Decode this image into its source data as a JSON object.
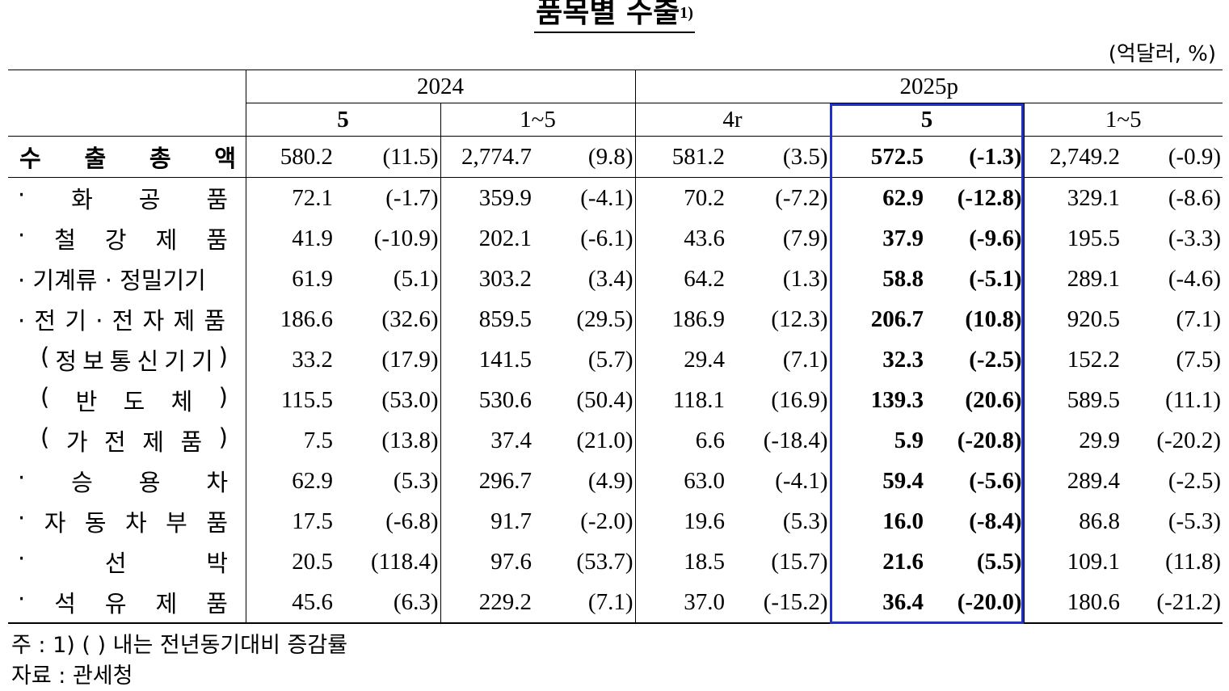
{
  "title": "품목별 수출",
  "title_note": "1)",
  "unit": "(억달러, %)",
  "header": {
    "year1": "2024",
    "year2": "2025p",
    "cols": [
      "5",
      "1~5",
      "4r",
      "5",
      "1~5"
    ]
  },
  "rows": [
    {
      "label": "수출총액",
      "v": [
        "580.2",
        "(11.5)",
        "2,774.7",
        "(9.8)",
        "581.2",
        "(3.5)",
        "572.5",
        "(-1.3)",
        "2,749.2",
        "(-0.9)"
      ]
    },
    {
      "label": "화공품",
      "v": [
        "72.1",
        "(-1.7)",
        "359.9",
        "(-4.1)",
        "70.2",
        "(-7.2)",
        "62.9",
        "(-12.8)",
        "329.1",
        "(-8.6)"
      ]
    },
    {
      "label": "철강제품",
      "v": [
        "41.9",
        "(-10.9)",
        "202.1",
        "(-6.1)",
        "43.6",
        "(7.9)",
        "37.9",
        "(-9.6)",
        "195.5",
        "(-3.3)"
      ]
    },
    {
      "label": "기계류 · 정밀기기",
      "v": [
        "61.9",
        "(5.1)",
        "303.2",
        "(3.4)",
        "64.2",
        "(1.3)",
        "58.8",
        "(-5.1)",
        "289.1",
        "(-4.6)"
      ]
    },
    {
      "label": "전기·전자제품",
      "v": [
        "186.6",
        "(32.6)",
        "859.5",
        "(29.5)",
        "186.9",
        "(12.3)",
        "206.7",
        "(10.8)",
        "920.5",
        "(7.1)"
      ]
    },
    {
      "label": "정보통신기기",
      "v": [
        "33.2",
        "(17.9)",
        "141.5",
        "(5.7)",
        "29.4",
        "(7.1)",
        "32.3",
        "(-2.5)",
        "152.2",
        "(7.5)"
      ]
    },
    {
      "label": "반도체",
      "v": [
        "115.5",
        "(53.0)",
        "530.6",
        "(50.4)",
        "118.1",
        "(16.9)",
        "139.3",
        "(20.6)",
        "589.5",
        "(11.1)"
      ]
    },
    {
      "label": "가전제품",
      "v": [
        "7.5",
        "(13.8)",
        "37.4",
        "(21.0)",
        "6.6",
        "(-18.4)",
        "5.9",
        "(-20.8)",
        "29.9",
        "(-20.2)"
      ]
    },
    {
      "label": "승용차",
      "v": [
        "62.9",
        "(5.3)",
        "296.7",
        "(4.9)",
        "63.0",
        "(-4.1)",
        "59.4",
        "(-5.6)",
        "289.4",
        "(-2.5)"
      ]
    },
    {
      "label": "자동차부품",
      "v": [
        "17.5",
        "(-6.8)",
        "91.7",
        "(-2.0)",
        "19.6",
        "(5.3)",
        "16.0",
        "(-8.4)",
        "86.8",
        "(-5.3)"
      ]
    },
    {
      "label": "선박",
      "v": [
        "20.5",
        "(118.4)",
        "97.6",
        "(53.7)",
        "18.5",
        "(15.7)",
        "21.6",
        "(5.5)",
        "109.1",
        "(11.8)"
      ]
    },
    {
      "label": "석유제품",
      "v": [
        "45.6",
        "(6.3)",
        "229.2",
        "(7.1)",
        "37.0",
        "(-15.2)",
        "36.4",
        "(-20.0)",
        "180.6",
        "(-21.2)"
      ]
    }
  ],
  "note1": "주 : 1) (   ) 내는 전년동기대비 증감률",
  "note2": "자료 : 관세청",
  "highlight_color": "#1f2fc9"
}
